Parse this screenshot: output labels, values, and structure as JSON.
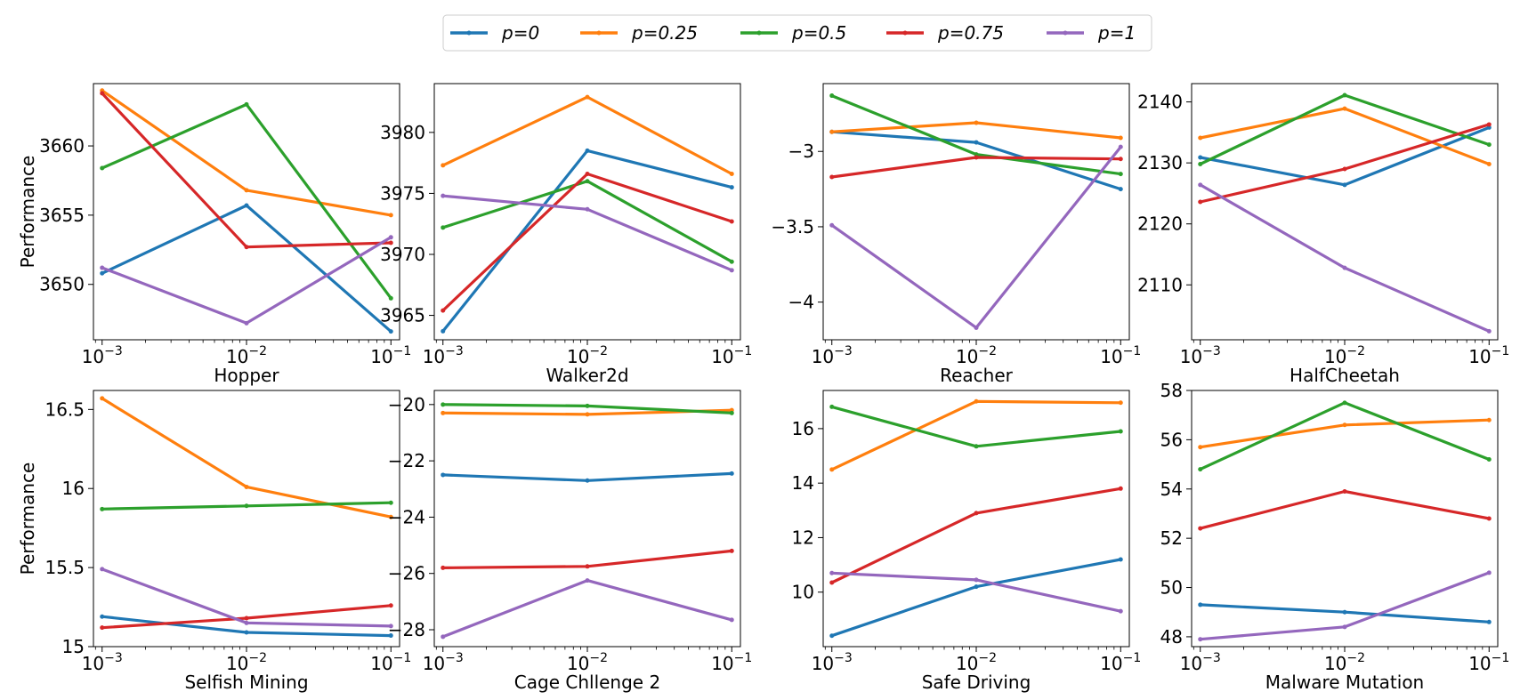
{
  "legend": {
    "entries": [
      {
        "label": "p=0",
        "color": "#1f77b4"
      },
      {
        "label": "p=0.25",
        "color": "#ff7f0e"
      },
      {
        "label": "p=0.5",
        "color": "#2ca02c"
      },
      {
        "label": "p=0.75",
        "color": "#d62728"
      },
      {
        "label": "p=1",
        "color": "#9467bd"
      }
    ],
    "placement": "top-center"
  },
  "chart_data": [
    {
      "type": "line",
      "title": "",
      "xlabel": "Hopper",
      "ylabel": "Performance",
      "x": [
        0.001,
        0.01,
        0.1
      ],
      "xscale": "log",
      "xticks": [
        "10^-3",
        "10^-2",
        "10^-1"
      ],
      "ylim": [
        3646.0,
        3664.5
      ],
      "yticks": [
        3650,
        3655,
        3660
      ],
      "grid": false,
      "series": [
        {
          "name": "p=0",
          "values": [
            3650.8,
            3655.7,
            3646.6
          ]
        },
        {
          "name": "p=0.25",
          "values": [
            3664.0,
            3656.8,
            3655.0
          ]
        },
        {
          "name": "p=0.5",
          "values": [
            3658.4,
            3663.0,
            3649.0
          ]
        },
        {
          "name": "p=0.75",
          "values": [
            3663.8,
            3652.7,
            3653.0
          ]
        },
        {
          "name": "p=1",
          "values": [
            3651.2,
            3647.2,
            3653.4
          ]
        }
      ]
    },
    {
      "type": "line",
      "title": "",
      "xlabel": "Walker2d",
      "ylabel": "",
      "x": [
        0.001,
        0.01,
        0.1
      ],
      "xscale": "log",
      "xticks": [
        "10^-3",
        "10^-2",
        "10^-1"
      ],
      "ylim": [
        3963.0,
        3984.0
      ],
      "yticks": [
        3965,
        3970,
        3975,
        3980
      ],
      "grid": false,
      "series": [
        {
          "name": "p=0",
          "values": [
            3963.7,
            3978.5,
            3975.5
          ]
        },
        {
          "name": "p=0.25",
          "values": [
            3977.3,
            3982.9,
            3976.6
          ]
        },
        {
          "name": "p=0.5",
          "values": [
            3972.2,
            3976.0,
            3969.4
          ]
        },
        {
          "name": "p=0.75",
          "values": [
            3965.4,
            3976.6,
            3972.7
          ]
        },
        {
          "name": "p=1",
          "values": [
            3974.8,
            3973.7,
            3968.7
          ]
        }
      ]
    },
    {
      "type": "line",
      "title": "",
      "xlabel": "Reacher",
      "ylabel": "",
      "x": [
        0.001,
        0.01,
        0.1
      ],
      "xscale": "log",
      "xticks": [
        "10^-3",
        "10^-2",
        "10^-1"
      ],
      "ylim": [
        -4.25,
        -2.55
      ],
      "yticks": [
        -4.0,
        -3.5,
        -3.0
      ],
      "grid": false,
      "series": [
        {
          "name": "p=0",
          "values": [
            -2.87,
            -2.94,
            -3.25
          ]
        },
        {
          "name": "p=0.25",
          "values": [
            -2.87,
            -2.81,
            -2.91
          ]
        },
        {
          "name": "p=0.5",
          "values": [
            -2.63,
            -3.02,
            -3.15
          ]
        },
        {
          "name": "p=0.75",
          "values": [
            -3.17,
            -3.04,
            -3.05
          ]
        },
        {
          "name": "p=1",
          "values": [
            -3.49,
            -4.17,
            -2.97
          ]
        }
      ]
    },
    {
      "type": "line",
      "title": "",
      "xlabel": "HalfCheetah",
      "ylabel": "",
      "x": [
        0.001,
        0.01,
        0.1
      ],
      "xscale": "log",
      "xticks": [
        "10^-3",
        "10^-2",
        "10^-1"
      ],
      "ylim": [
        2101.0,
        2143.0
      ],
      "yticks": [
        2110,
        2120,
        2130,
        2140
      ],
      "grid": false,
      "series": [
        {
          "name": "p=0",
          "values": [
            2130.9,
            2126.4,
            2135.8
          ]
        },
        {
          "name": "p=0.25",
          "values": [
            2134.1,
            2138.9,
            2129.8
          ]
        },
        {
          "name": "p=0.5",
          "values": [
            2129.8,
            2141.1,
            2133.0
          ]
        },
        {
          "name": "p=0.75",
          "values": [
            2123.6,
            2129.0,
            2136.3
          ]
        },
        {
          "name": "p=1",
          "values": [
            2126.4,
            2112.8,
            2102.4
          ]
        }
      ]
    },
    {
      "type": "line",
      "title": "",
      "xlabel": "Selfish Mining",
      "ylabel": "Performance",
      "x": [
        0.001,
        0.01,
        0.1
      ],
      "xscale": "log",
      "xticks": [
        "10^-3",
        "10^-2",
        "10^-1"
      ],
      "ylim": [
        15.0,
        16.62
      ],
      "yticks": [
        15.0,
        15.5,
        16.0,
        16.5
      ],
      "grid": false,
      "series": [
        {
          "name": "p=0",
          "values": [
            15.19,
            15.09,
            15.07
          ]
        },
        {
          "name": "p=0.25",
          "values": [
            16.57,
            16.01,
            15.82
          ]
        },
        {
          "name": "p=0.5",
          "values": [
            15.87,
            15.89,
            15.91
          ]
        },
        {
          "name": "p=0.75",
          "values": [
            15.12,
            15.18,
            15.26
          ]
        },
        {
          "name": "p=1",
          "values": [
            15.49,
            15.15,
            15.13
          ]
        }
      ]
    },
    {
      "type": "line",
      "title": "",
      "xlabel": "Cage Chllenge 2",
      "ylabel": "",
      "x": [
        0.001,
        0.01,
        0.1
      ],
      "xscale": "log",
      "xticks": [
        "10^-3",
        "10^-2",
        "10^-1"
      ],
      "ylim": [
        -28.6,
        -19.5
      ],
      "yticks": [
        -28,
        -26,
        -24,
        -22,
        -20
      ],
      "grid": false,
      "series": [
        {
          "name": "p=0",
          "values": [
            -22.5,
            -22.7,
            -22.45
          ]
        },
        {
          "name": "p=0.25",
          "values": [
            -20.3,
            -20.35,
            -20.2
          ]
        },
        {
          "name": "p=0.5",
          "values": [
            -20.0,
            -20.05,
            -20.3
          ]
        },
        {
          "name": "p=0.75",
          "values": [
            -25.8,
            -25.75,
            -25.2
          ]
        },
        {
          "name": "p=1",
          "values": [
            -28.25,
            -26.25,
            -27.65
          ]
        }
      ]
    },
    {
      "type": "line",
      "title": "",
      "xlabel": "Safe Driving",
      "ylabel": "",
      "x": [
        0.001,
        0.01,
        0.1
      ],
      "xscale": "log",
      "xticks": [
        "10^-3",
        "10^-2",
        "10^-1"
      ],
      "ylim": [
        8.0,
        17.4
      ],
      "yticks": [
        10,
        12,
        14,
        16
      ],
      "grid": false,
      "series": [
        {
          "name": "p=0",
          "values": [
            8.4,
            10.2,
            11.2
          ]
        },
        {
          "name": "p=0.25",
          "values": [
            14.5,
            17.0,
            16.95
          ]
        },
        {
          "name": "p=0.5",
          "values": [
            16.8,
            15.35,
            15.9
          ]
        },
        {
          "name": "p=0.75",
          "values": [
            10.35,
            12.9,
            13.8
          ]
        },
        {
          "name": "p=1",
          "values": [
            10.7,
            10.45,
            9.3
          ]
        }
      ]
    },
    {
      "type": "line",
      "title": "",
      "xlabel": "Malware Mutation",
      "ylabel": "",
      "x": [
        0.001,
        0.01,
        0.1
      ],
      "xscale": "log",
      "xticks": [
        "10^-3",
        "10^-2",
        "10^-1"
      ],
      "ylim": [
        47.6,
        58.0
      ],
      "yticks": [
        48,
        50,
        52,
        54,
        56,
        58
      ],
      "grid": false,
      "series": [
        {
          "name": "p=0",
          "values": [
            49.3,
            49.0,
            48.6
          ]
        },
        {
          "name": "p=0.25",
          "values": [
            55.7,
            56.6,
            56.8
          ]
        },
        {
          "name": "p=0.5",
          "values": [
            54.8,
            57.5,
            55.2
          ]
        },
        {
          "name": "p=0.75",
          "values": [
            52.4,
            53.9,
            52.8
          ]
        },
        {
          "name": "p=1",
          "values": [
            47.9,
            48.4,
            50.6
          ]
        }
      ]
    }
  ]
}
